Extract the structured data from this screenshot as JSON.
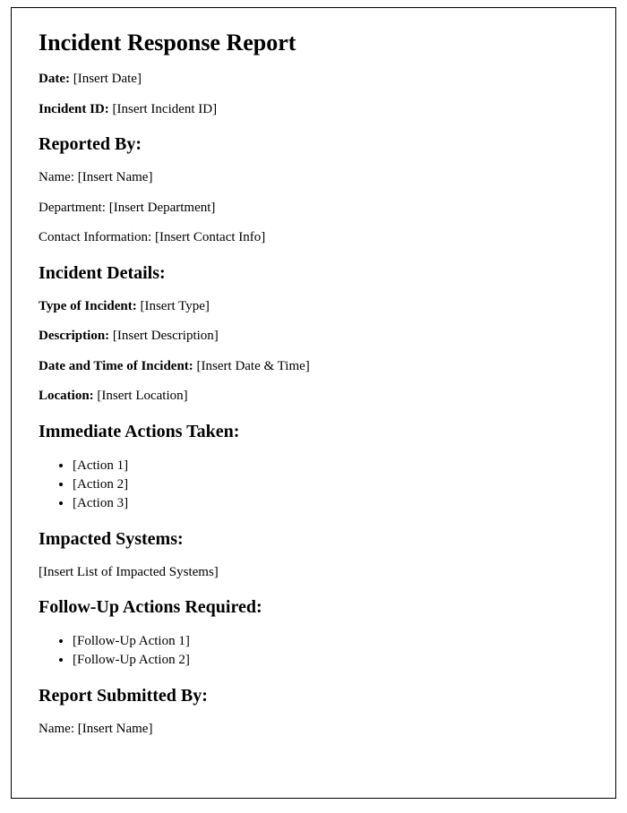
{
  "title": "Incident Response Report",
  "header": {
    "date_label": "Date:",
    "date_value": " [Insert Date]",
    "incident_id_label": "Incident ID:",
    "incident_id_value": " [Insert Incident ID]"
  },
  "reported_by": {
    "heading": "Reported By:",
    "name": "Name: [Insert Name]",
    "department": "Department: [Insert Department]",
    "contact": "Contact Information: [Insert Contact Info]"
  },
  "incident_details": {
    "heading": "Incident Details:",
    "type_label": "Type of Incident:",
    "type_value": " [Insert Type]",
    "description_label": "Description:",
    "description_value": " [Insert Description]",
    "datetime_label": "Date and Time of Incident:",
    "datetime_value": " [Insert Date & Time]",
    "location_label": "Location:",
    "location_value": " [Insert Location]"
  },
  "immediate_actions": {
    "heading": "Immediate Actions Taken:",
    "items": [
      "[Action 1]",
      "[Action 2]",
      "[Action 3]"
    ]
  },
  "impacted_systems": {
    "heading": "Impacted Systems:",
    "value": "[Insert List of Impacted Systems]"
  },
  "followup": {
    "heading": "Follow-Up Actions Required:",
    "items": [
      "[Follow-Up Action 1]",
      "[Follow-Up Action 2]"
    ]
  },
  "submitted_by": {
    "heading": "Report Submitted By:",
    "name": "Name: [Insert Name]"
  }
}
